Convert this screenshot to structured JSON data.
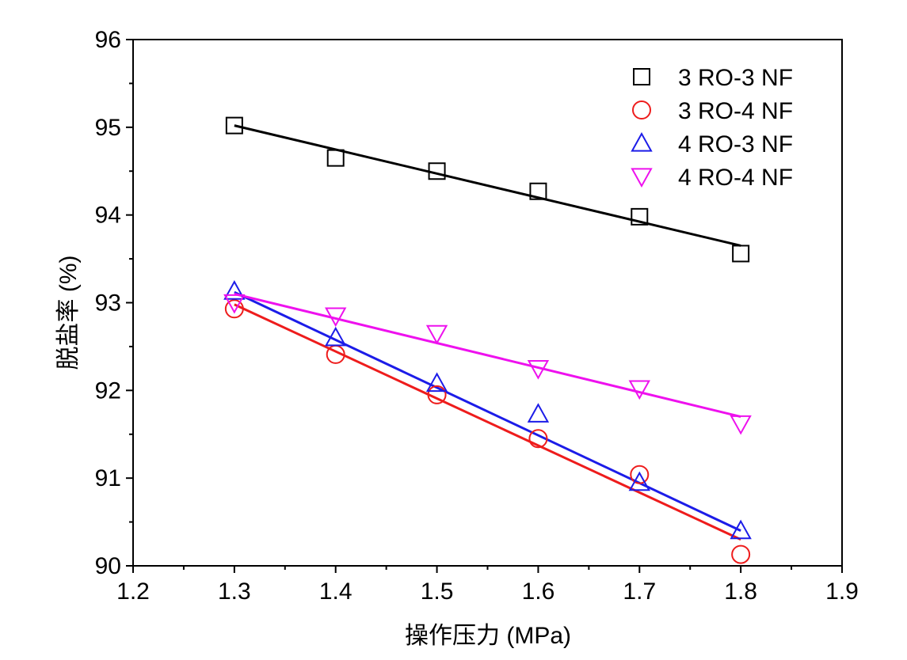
{
  "chart_data": {
    "type": "scatter",
    "title": "",
    "xlabel": "操作压力 (MPa)",
    "ylabel": "脱盐率 (%)",
    "xlim": [
      1.2,
      1.9
    ],
    "ylim": [
      90,
      96
    ],
    "x_ticks": [
      1.2,
      1.3,
      1.4,
      1.5,
      1.6,
      1.7,
      1.8,
      1.9
    ],
    "x_tick_labels": [
      "1.2",
      "1.3",
      "1.4",
      "1.5",
      "1.6",
      "1.7",
      "1.8",
      "1.9"
    ],
    "y_ticks": [
      90,
      91,
      92,
      93,
      94,
      95,
      96
    ],
    "y_tick_labels": [
      "90",
      "91",
      "92",
      "93",
      "94",
      "95",
      "96"
    ],
    "grid": false,
    "legend_position": "top-right",
    "x": [
      1.3,
      1.4,
      1.5,
      1.6,
      1.7,
      1.8
    ],
    "series": [
      {
        "name": "3 RO-3 NF",
        "marker": "square",
        "marker_color": "#000000",
        "line_color": "#000000",
        "values": [
          95.02,
          94.65,
          94.5,
          94.27,
          93.98,
          93.56
        ],
        "fit": [
          95.02,
          93.65
        ]
      },
      {
        "name": "3 RO-4 NF",
        "marker": "circle",
        "marker_color": "#ee1c1c",
        "line_color": "#ee1c1c",
        "values": [
          92.93,
          92.41,
          91.95,
          91.45,
          91.04,
          90.13
        ],
        "fit": [
          92.98,
          90.3
        ]
      },
      {
        "name": "4 RO-3 NF",
        "marker": "triangle-up",
        "marker_color": "#1c1ce8",
        "line_color": "#1c1ce8",
        "values": [
          93.13,
          92.6,
          92.08,
          91.73,
          90.95,
          90.4
        ],
        "fit": [
          93.12,
          90.4
        ]
      },
      {
        "name": "4 RO-4 NF",
        "marker": "triangle-down",
        "marker_color": "#ee11ee",
        "line_color": "#ee11ee",
        "values": [
          93.0,
          92.85,
          92.65,
          92.25,
          92.02,
          91.62
        ],
        "fit": [
          93.1,
          91.7
        ]
      }
    ]
  }
}
